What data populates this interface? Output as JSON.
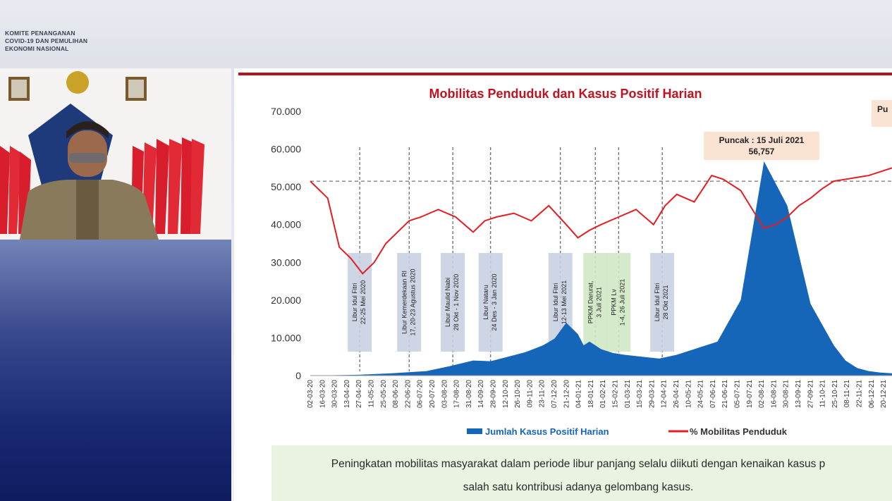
{
  "header": {
    "org_lines": [
      "KOMITE PENANGANAN",
      "COVID-19 DAN PEMULIHAN",
      "EKONOMI NASIONAL"
    ]
  },
  "slide": {
    "title": "Mobilitas Penduduk dan Kasus Positif Harian",
    "peak_label_line1": "Puncak : 15 Juli 2021",
    "peak_label_line2": "56,757",
    "corner_label": "Pu",
    "footer_line1": "Peningkatan mobilitas masyarakat dalam periode libur panjang selalu diikuti dengan kenaikan kasus p",
    "footer_line2": "salah satu kontribusi adanya gelombang kasus."
  },
  "colors": {
    "cases": "#1565b8",
    "mobility": "#e41d23",
    "title": "#c0121f",
    "annotation_box": "#c9d1e2",
    "ppkm_box": "#cfe8c4",
    "peak_box": "#fbe3d4",
    "footer_bg": "#eaf3e1"
  },
  "chart_data": {
    "type": "line",
    "title": "Mobilitas Penduduk dan Kasus Positif Harian",
    "y_ticks": [
      "0",
      "10.000",
      "20.000",
      "30.000",
      "40.000",
      "50.000",
      "60.000",
      "70.000"
    ],
    "ylim": [
      0,
      70000
    ],
    "reference_line_y": 51500,
    "x_ticks": [
      "02-03-20",
      "16-03-20",
      "30-03-20",
      "13-04-20",
      "27-04-20",
      "11-05-20",
      "25-05-20",
      "08-06-20",
      "22-06-20",
      "06-07-20",
      "20-07-20",
      "03-08-20",
      "17-08-20",
      "31-08-20",
      "14-09-20",
      "28-09-20",
      "12-10-20",
      "26-10-20",
      "09-11-20",
      "23-11-20",
      "07-12-20",
      "21-12-20",
      "04-01-21",
      "18-01-21",
      "01-02-21",
      "15-02-21",
      "01-03-21",
      "15-03-21",
      "29-03-21",
      "12-04-21",
      "26-04-21",
      "10-05-21",
      "24-05-21",
      "07-06-21",
      "21-06-21",
      "05-07-21",
      "19-07-21",
      "02-08-21",
      "16-08-21",
      "30-08-21",
      "13-09-21",
      "27-09-21",
      "11-10-21",
      "25-10-21",
      "08-11-21",
      "22-11-21",
      "06-12-21",
      "20-12-21"
    ],
    "legend": [
      "Jumlah Kasus Positif Harian",
      "% Mobilitas Penduduk"
    ],
    "series": [
      {
        "name": "Jumlah Kasus Positif Harian",
        "type": "area",
        "x": [
          0,
          8,
          14,
          20,
          24,
          28,
          31,
          34,
          37,
          40,
          42,
          44,
          46,
          47,
          48,
          50,
          52,
          54,
          57,
          60,
          63,
          66,
          70,
          74,
          78,
          82,
          86,
          90,
          92,
          94,
          96,
          98,
          100
        ],
        "values": [
          0,
          200,
          600,
          1200,
          2500,
          4000,
          3800,
          5000,
          6200,
          8000,
          9800,
          14000,
          11000,
          8000,
          9000,
          7000,
          6000,
          5500,
          5000,
          4500,
          5500,
          7000,
          9000,
          20000,
          56757,
          45000,
          19000,
          8000,
          4000,
          2000,
          1200,
          800,
          600
        ]
      },
      {
        "name": "% Mobilitas Penduduk",
        "type": "line",
        "x": [
          0,
          3,
          5,
          7,
          9,
          11,
          13,
          15,
          17,
          19,
          22,
          25,
          28,
          30,
          32,
          35,
          38,
          41,
          44,
          46,
          48,
          50,
          53,
          56,
          59,
          61,
          63,
          66,
          69,
          71,
          74,
          76,
          78,
          80,
          82,
          84,
          86,
          88,
          90,
          92,
          94,
          96,
          98,
          100
        ],
        "values": [
          51500,
          47000,
          34000,
          31000,
          27000,
          30000,
          35000,
          38000,
          41000,
          42000,
          44000,
          42000,
          38000,
          41000,
          42000,
          43000,
          41000,
          45000,
          40000,
          36500,
          38500,
          40000,
          42000,
          44000,
          40000,
          45000,
          48000,
          46000,
          53000,
          52000,
          49000,
          44000,
          39000,
          40000,
          42000,
          45000,
          47000,
          49500,
          51500,
          52000,
          52500,
          53000,
          54000,
          55000
        ]
      }
    ],
    "annotations": [
      {
        "label": "Libur Idul Fitri 22-25 Mei 2020",
        "x": 8.5,
        "style": "blue"
      },
      {
        "label": "Libur Kemerdekaan RI 17, 20-23 Agustus 2020",
        "x": 17,
        "style": "blue"
      },
      {
        "label": "Libur Maulid Nabi 28 Okt - 1 Nov 2020",
        "x": 24.5,
        "style": "blue"
      },
      {
        "label": "Libur Nataru 24 Des - 3 Jan 2020",
        "x": 31,
        "style": "blue"
      },
      {
        "label": "Libur Idul Fitri 12-13 Mei 2021",
        "x": 43,
        "style": "blue"
      },
      {
        "label": "PPKM Darurat, 3 Juli 2021",
        "x": 49,
        "style": "green"
      },
      {
        "label": "PPKM Lv 1-4, 26 Juli 2021",
        "x": 53,
        "style": "green"
      },
      {
        "label": "Libur Idul Fitri 28 Okt 2021",
        "x": 60.5,
        "style": "blue"
      }
    ]
  }
}
